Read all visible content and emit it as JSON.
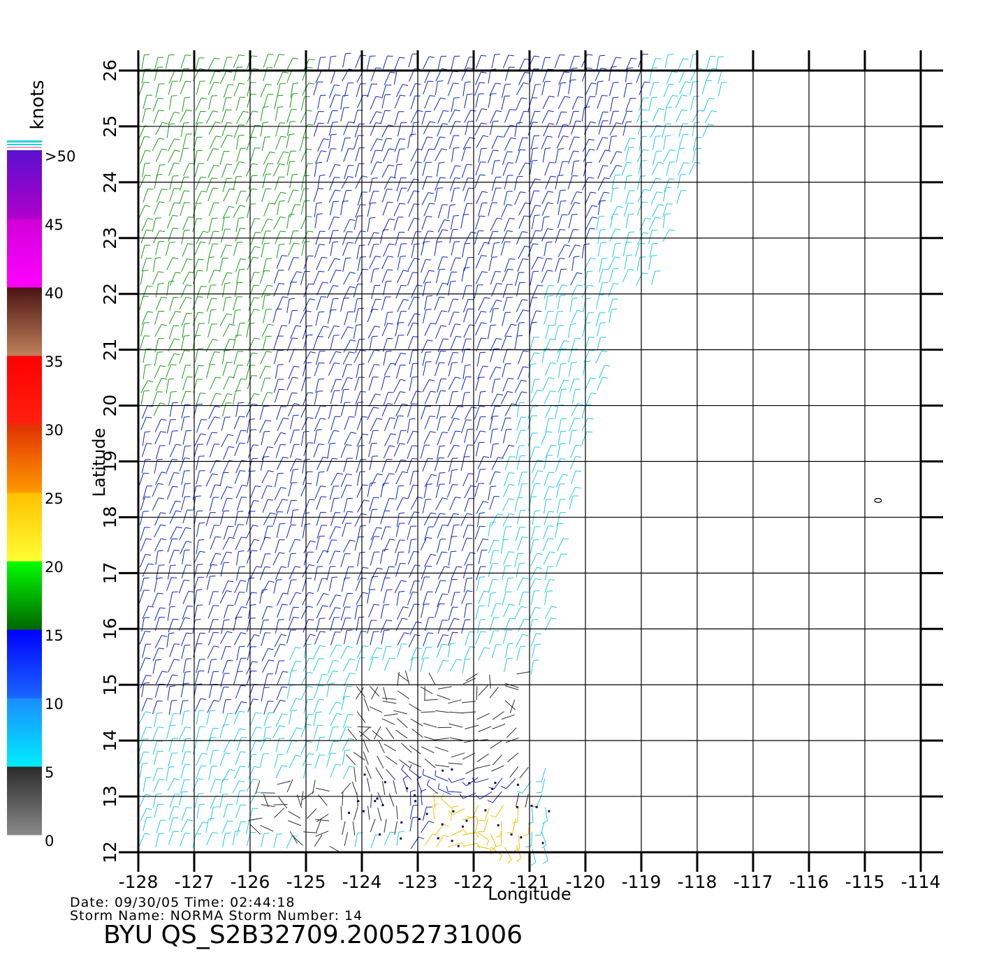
{
  "colorbar": {
    "unit_label": "knots",
    "tick_labels": [
      ">50",
      "45",
      "40",
      "35",
      "30",
      "25",
      "20",
      "15",
      "10",
      "5",
      "0"
    ],
    "segments": [
      {
        "from": 0,
        "to": 5,
        "colors": [
          "#8a8a8a",
          "#2a2a2a"
        ]
      },
      {
        "from": 5,
        "to": 10,
        "colors": [
          "#00eeff",
          "#1a8cff"
        ]
      },
      {
        "from": 10,
        "to": 15,
        "colors": [
          "#1a66ff",
          "#0000ff"
        ]
      },
      {
        "from": 15,
        "to": 20,
        "colors": [
          "#006600",
          "#00ff00"
        ]
      },
      {
        "from": 20,
        "to": 25,
        "colors": [
          "#ffff33",
          "#ffc000"
        ]
      },
      {
        "from": 25,
        "to": 30,
        "colors": [
          "#ff9900",
          "#e03000"
        ]
      },
      {
        "from": 30,
        "to": 35,
        "colors": [
          "#ff2010",
          "#ff0000"
        ]
      },
      {
        "from": 35,
        "to": 40,
        "colors": [
          "#c0805a",
          "#4a1414"
        ]
      },
      {
        "from": 40,
        "to": 45,
        "colors": [
          "#ff00ff",
          "#d000d8"
        ]
      },
      {
        "from": 45,
        "to": 50,
        "colors": [
          "#b000c8",
          "#5a10d0"
        ]
      }
    ]
  },
  "map": {
    "lon_range": [
      -128,
      -114
    ],
    "lat_range": [
      12,
      26
    ],
    "x_ticks": [
      "-128",
      "-127",
      "-126",
      "-125",
      "-124",
      "-123",
      "-122",
      "-121",
      "-120",
      "-119",
      "-118",
      "-117",
      "-116",
      "-115",
      "-114"
    ],
    "y_ticks": [
      "12",
      "13",
      "14",
      "15",
      "16",
      "17",
      "18",
      "19",
      "20",
      "21",
      "22",
      "23",
      "24",
      "25",
      "26"
    ],
    "xlabel": "Longitude",
    "ylabel": "Latitude",
    "marker_text": "0",
    "marker_lon": -114.7,
    "marker_lat": 18.3
  },
  "footer": {
    "line1": "Date: 09/30/05   Time: 02:44:18",
    "line2": "Storm  Name:  NORMA   Storm  Number:  14",
    "title": "BYU  QS_S2B32709.20052731006"
  },
  "colors": {
    "calm": "#2b2b2b",
    "light": "#22c8e0",
    "moderate": "#0a24b8",
    "fresh": "#1a9a1a",
    "strong": "#f0c000",
    "grid": "#000000"
  }
}
